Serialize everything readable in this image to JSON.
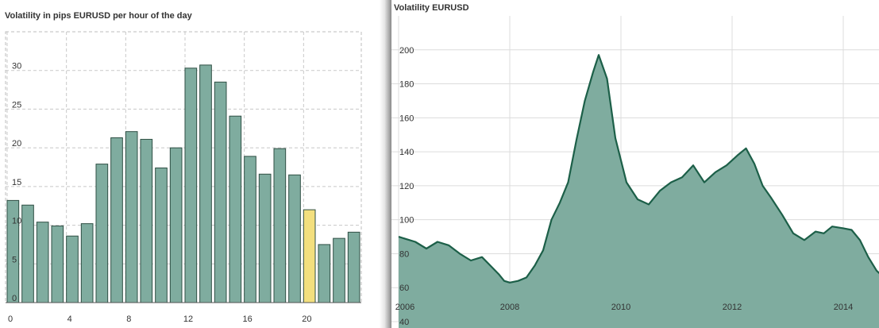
{
  "chart_data": [
    {
      "type": "bar",
      "title": "Volatility in pips EURUSD per hour of the day",
      "xlabel": "",
      "ylabel": "",
      "ylim": [
        0,
        35
      ],
      "grid": true,
      "bar_color": "#7fac9f",
      "highlight_color": "#f3df7e",
      "highlight_index": 20,
      "categories": [
        0,
        1,
        2,
        3,
        4,
        5,
        6,
        7,
        8,
        9,
        10,
        11,
        12,
        13,
        14,
        15,
        16,
        17,
        18,
        19,
        20,
        21,
        22,
        23
      ],
      "values": [
        13.2,
        12.6,
        10.4,
        9.9,
        8.6,
        10.2,
        17.9,
        21.3,
        22.1,
        21.1,
        17.4,
        20.0,
        30.3,
        30.7,
        28.5,
        24.1,
        18.9,
        16.6,
        19.9,
        16.5,
        12.0,
        7.5,
        8.3,
        9.1
      ],
      "x_ticks": [
        0,
        4,
        8,
        12,
        16,
        20
      ],
      "y_ticks": [
        0,
        5,
        10,
        15,
        20,
        25,
        30
      ]
    },
    {
      "type": "area",
      "title": "Volatility EURUSD",
      "xlabel": "",
      "ylabel": "",
      "xlim": [
        2006,
        2014.85
      ],
      "ylim": [
        40,
        220
      ],
      "grid": true,
      "fill_color": "#7fac9f",
      "line_color": "#1c5f48",
      "x_ticks": [
        2006,
        2008,
        2010,
        2012,
        2014
      ],
      "y_ticks": [
        40,
        60,
        80,
        100,
        120,
        140,
        160,
        180,
        200
      ],
      "x": [
        2006.0,
        2006.3,
        2006.5,
        2006.7,
        2006.9,
        2007.1,
        2007.3,
        2007.5,
        2007.65,
        2007.8,
        2007.9,
        2008.0,
        2008.15,
        2008.3,
        2008.45,
        2008.6,
        2008.75,
        2008.9,
        2009.05,
        2009.2,
        2009.35,
        2009.5,
        2009.6,
        2009.75,
        2009.9,
        2010.1,
        2010.3,
        2010.5,
        2010.7,
        2010.9,
        2011.1,
        2011.3,
        2011.5,
        2011.7,
        2011.9,
        2012.1,
        2012.25,
        2012.4,
        2012.55,
        2012.7,
        2012.9,
        2013.1,
        2013.3,
        2013.5,
        2013.65,
        2013.8,
        2014.0,
        2014.15,
        2014.3,
        2014.45,
        2014.6,
        2014.7,
        2014.8,
        2014.85
      ],
      "y": [
        90,
        87,
        83,
        87,
        85,
        80,
        76,
        78,
        73,
        68,
        64,
        63,
        64,
        66,
        73,
        82,
        100,
        110,
        122,
        147,
        170,
        187,
        197,
        183,
        148,
        122,
        112,
        109,
        117,
        122,
        125,
        132,
        122,
        128,
        132,
        138,
        142,
        133,
        120,
        113,
        103,
        92,
        88,
        93,
        92,
        96,
        95,
        94,
        88,
        78,
        70,
        67,
        67,
        72
      ]
    }
  ]
}
